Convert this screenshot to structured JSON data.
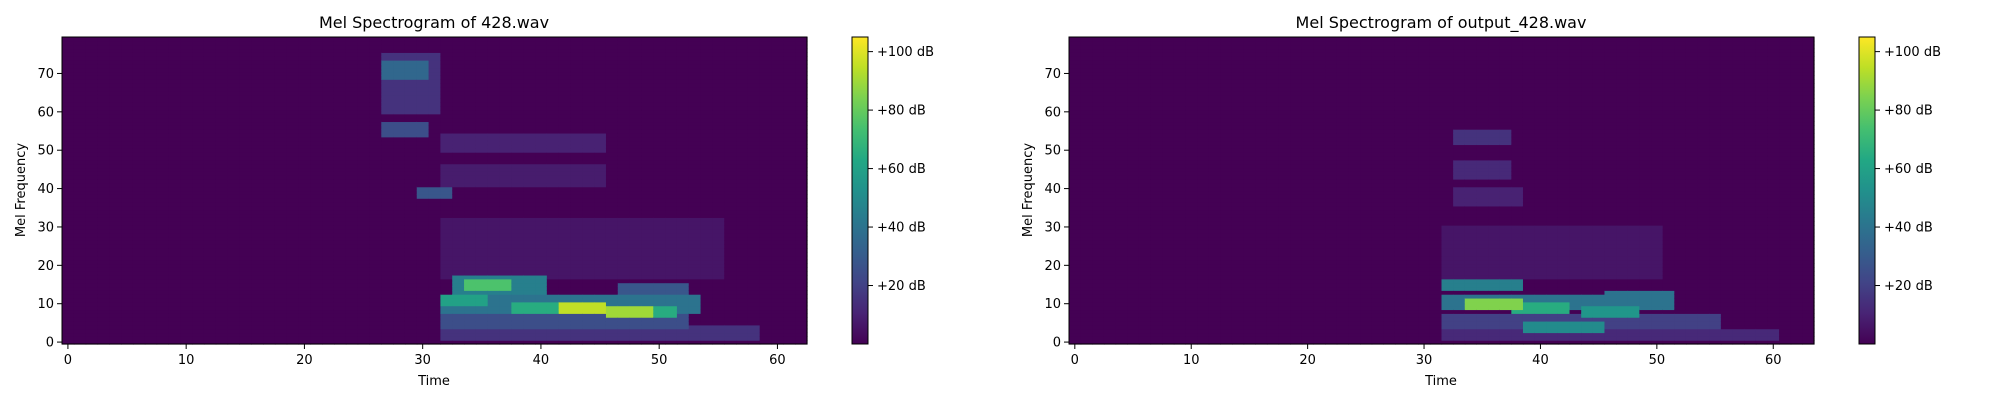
{
  "colors": {
    "viridis_low": "#440154",
    "viridis_high": "#fde725"
  },
  "chart_data": [
    {
      "type": "heatmap",
      "title": "Mel Spectrogram of 428.wav",
      "xlabel": "Time",
      "ylabel": "Mel Frequency",
      "xlim": [
        -0.5,
        62.5
      ],
      "ylim": [
        -0.5,
        79.5
      ],
      "xticks": [
        0,
        10,
        20,
        30,
        40,
        50,
        60
      ],
      "yticks": [
        0,
        10,
        20,
        30,
        40,
        50,
        60,
        70
      ],
      "colorbar": {
        "range": [
          0,
          105
        ],
        "ticks": [
          20,
          40,
          60,
          80,
          100
        ],
        "tick_labels": [
          "+20 dB",
          "+40 dB",
          "+60 dB",
          "+80 dB",
          "+100 dB"
        ]
      },
      "blobs": [
        {
          "t": [
            27,
            30
          ],
          "f": [
            69,
            73
          ],
          "v": 35
        },
        {
          "t": [
            27,
            30
          ],
          "f": [
            54,
            57
          ],
          "v": 25
        },
        {
          "t": [
            27,
            31
          ],
          "f": [
            60,
            75
          ],
          "v": 15
        },
        {
          "t": [
            30,
            32
          ],
          "f": [
            38,
            40
          ],
          "v": 28
        },
        {
          "t": [
            32,
            45
          ],
          "f": [
            50,
            54
          ],
          "v": 10
        },
        {
          "t": [
            32,
            45
          ],
          "f": [
            41,
            46
          ],
          "v": 8
        },
        {
          "t": [
            34,
            37
          ],
          "f": [
            14,
            16
          ],
          "v": 75
        },
        {
          "t": [
            33,
            40
          ],
          "f": [
            13,
            17
          ],
          "v": 45
        },
        {
          "t": [
            32,
            35
          ],
          "f": [
            10,
            12
          ],
          "v": 60
        },
        {
          "t": [
            32,
            53
          ],
          "f": [
            8,
            12
          ],
          "v": 40
        },
        {
          "t": [
            38,
            41
          ],
          "f": [
            8,
            10
          ],
          "v": 65
        },
        {
          "t": [
            42,
            45
          ],
          "f": [
            8,
            10
          ],
          "v": 95
        },
        {
          "t": [
            46,
            49
          ],
          "f": [
            7,
            9
          ],
          "v": 90
        },
        {
          "t": [
            49,
            51
          ],
          "f": [
            7,
            9
          ],
          "v": 65
        },
        {
          "t": [
            32,
            52
          ],
          "f": [
            4,
            7
          ],
          "v": 25
        },
        {
          "t": [
            32,
            58
          ],
          "f": [
            1,
            4
          ],
          "v": 15
        },
        {
          "t": [
            47,
            52
          ],
          "f": [
            12,
            15
          ],
          "v": 28
        },
        {
          "t": [
            32,
            55
          ],
          "f": [
            17,
            32
          ],
          "v": 6
        }
      ]
    },
    {
      "type": "heatmap",
      "title": "Mel Spectrogram of output_428.wav",
      "xlabel": "Time",
      "ylabel": "Mel Frequency",
      "xlim": [
        -0.5,
        63.5
      ],
      "ylim": [
        -0.5,
        79.5
      ],
      "xticks": [
        0,
        10,
        20,
        30,
        40,
        50,
        60
      ],
      "yticks": [
        0,
        10,
        20,
        30,
        40,
        50,
        60,
        70
      ],
      "colorbar": {
        "range": [
          0,
          105
        ],
        "ticks": [
          20,
          40,
          60,
          80,
          100
        ],
        "tick_labels": [
          "+20 dB",
          "+40 dB",
          "+60 dB",
          "+80 dB",
          "+100 dB"
        ]
      },
      "blobs": [
        {
          "t": [
            33,
            37
          ],
          "f": [
            52,
            55
          ],
          "v": 15
        },
        {
          "t": [
            33,
            37
          ],
          "f": [
            43,
            47
          ],
          "v": 12
        },
        {
          "t": [
            33,
            38
          ],
          "f": [
            36,
            40
          ],
          "v": 10
        },
        {
          "t": [
            32,
            38
          ],
          "f": [
            14,
            16
          ],
          "v": 45
        },
        {
          "t": [
            32,
            51
          ],
          "f": [
            9,
            12
          ],
          "v": 40
        },
        {
          "t": [
            34,
            38
          ],
          "f": [
            9,
            11
          ],
          "v": 85
        },
        {
          "t": [
            38,
            42
          ],
          "f": [
            8,
            10
          ],
          "v": 65
        },
        {
          "t": [
            44,
            48
          ],
          "f": [
            7,
            9
          ],
          "v": 55
        },
        {
          "t": [
            46,
            51
          ],
          "f": [
            11,
            13
          ],
          "v": 40
        },
        {
          "t": [
            39,
            45
          ],
          "f": [
            3,
            5
          ],
          "v": 50
        },
        {
          "t": [
            32,
            55
          ],
          "f": [
            4,
            7
          ],
          "v": 20
        },
        {
          "t": [
            32,
            60
          ],
          "f": [
            1,
            3
          ],
          "v": 12
        },
        {
          "t": [
            32,
            50
          ],
          "f": [
            17,
            30
          ],
          "v": 6
        }
      ]
    }
  ]
}
